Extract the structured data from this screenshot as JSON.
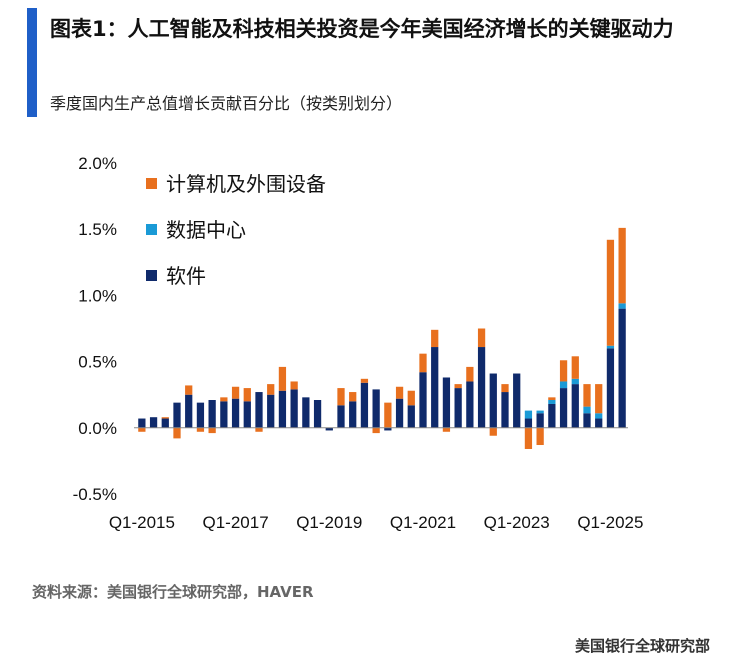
{
  "header": {
    "title": "图表1：人工智能及科技相关投资是今年美国经济增长的关键驱动力",
    "subtitle": "季度国内生产总值增长贡献百分比（按类别划分）"
  },
  "footer": {
    "source": "资料来源：美国银行全球研究部，HAVER",
    "brand": "美国银行全球研究部"
  },
  "colors": {
    "accent": "#1f5fc8",
    "computers": "#e8701e",
    "datacenter": "#1a9ad6",
    "software": "#0f2a6b"
  },
  "chart_data": {
    "type": "bar",
    "stacked": true,
    "title": "",
    "xlabel": "",
    "ylabel": "",
    "ylim": [
      -0.5,
      2.0
    ],
    "y_ticks": [
      "-0.5%",
      "0.0%",
      "0.5%",
      "1.0%",
      "1.5%",
      "2.0%"
    ],
    "x_tick_labels": [
      "Q1-2015",
      "Q1-2017",
      "Q1-2019",
      "Q1-2021",
      "Q1-2023",
      "Q1-2025"
    ],
    "legend_position": "top-left",
    "categories": [
      "Q1-2015",
      "Q2-2015",
      "Q3-2015",
      "Q4-2015",
      "Q1-2016",
      "Q2-2016",
      "Q3-2016",
      "Q4-2016",
      "Q1-2017",
      "Q2-2017",
      "Q3-2017",
      "Q4-2017",
      "Q1-2018",
      "Q2-2018",
      "Q3-2018",
      "Q4-2018",
      "Q1-2019",
      "Q2-2019",
      "Q3-2019",
      "Q4-2019",
      "Q1-2020",
      "Q2-2020",
      "Q3-2020",
      "Q4-2020",
      "Q1-2021",
      "Q2-2021",
      "Q3-2021",
      "Q4-2021",
      "Q1-2022",
      "Q2-2022",
      "Q3-2022",
      "Q4-2022",
      "Q1-2023",
      "Q2-2023",
      "Q3-2023",
      "Q4-2023",
      "Q1-2024",
      "Q2-2024",
      "Q3-2024",
      "Q4-2024",
      "Q1-2025",
      "Q2-2025"
    ],
    "series": [
      {
        "name": "软件",
        "values": [
          0.07,
          0.08,
          0.07,
          0.19,
          0.25,
          0.19,
          0.21,
          0.2,
          0.22,
          0.2,
          0.27,
          0.25,
          0.28,
          0.29,
          0.23,
          0.21,
          -0.02,
          0.17,
          0.2,
          0.34,
          0.29,
          -0.02,
          0.22,
          0.17,
          0.42,
          0.61,
          0.38,
          0.3,
          0.35,
          0.61,
          0.41,
          0.27,
          0.41,
          0.07,
          0.11,
          0.18,
          0.3,
          0.33,
          0.11,
          0.07,
          0.6,
          0.9
        ]
      },
      {
        "name": "数据中心",
        "values": [
          0,
          0,
          0,
          0,
          0,
          0,
          0,
          0,
          0,
          0,
          0,
          0,
          0,
          0,
          0,
          0,
          0,
          0,
          0,
          0,
          0,
          0,
          0,
          0,
          0,
          0,
          0,
          0,
          0,
          0,
          0,
          0,
          0,
          0.06,
          0.02,
          0.03,
          0.05,
          0.04,
          0.05,
          0.04,
          0.02,
          0.04
        ]
      },
      {
        "name": "计算机及外围设备",
        "values": [
          -0.03,
          0,
          0.01,
          -0.08,
          0.07,
          -0.03,
          -0.04,
          0.03,
          0.09,
          0.1,
          -0.03,
          0.08,
          0.18,
          0.06,
          0,
          0,
          0,
          0.13,
          0.07,
          0.03,
          -0.04,
          0.19,
          0.09,
          0.11,
          0.14,
          0.13,
          -0.03,
          0.03,
          0.11,
          0.14,
          -0.06,
          0.06,
          0,
          -0.16,
          -0.13,
          0.02,
          0.16,
          0.17,
          0.17,
          0.22,
          0.8,
          0.57
        ]
      }
    ]
  }
}
